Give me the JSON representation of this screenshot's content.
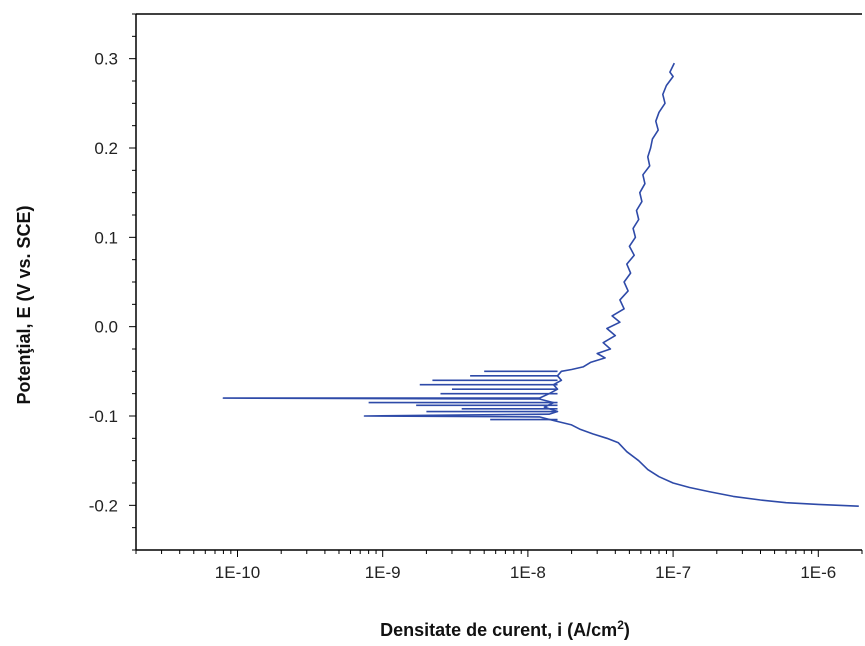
{
  "chart_data": {
    "type": "line",
    "title": "",
    "xlabel": "Densitate de curent, i (A/cm",
    "xlabel_sup": "2",
    "xlabel_end": ")",
    "ylabel": "Potenţial, E (V vs. SCE)",
    "xscale": "log",
    "xlim": [
      2e-11,
      2e-06
    ],
    "ylim": [
      -0.25,
      0.35
    ],
    "x_ticks": [
      {
        "value": 1e-10,
        "label": "1E-10"
      },
      {
        "value": 1e-09,
        "label": "1E-9"
      },
      {
        "value": 1e-08,
        "label": "1E-8"
      },
      {
        "value": 1e-07,
        "label": "1E-7"
      },
      {
        "value": 1e-06,
        "label": "1E-6"
      }
    ],
    "y_ticks": [
      {
        "value": 0.3,
        "label": "0.3"
      },
      {
        "value": 0.2,
        "label": "0.2"
      },
      {
        "value": 0.1,
        "label": "0.1"
      },
      {
        "value": 0.0,
        "label": "0.0"
      },
      {
        "value": -0.1,
        "label": "-0.1"
      },
      {
        "value": -0.2,
        "label": "-0.2"
      }
    ],
    "grid": false,
    "legend": "none",
    "line_color": "#2e4aa8",
    "series": [
      {
        "points": [
          [
            1.02e-07,
            0.295
          ],
          [
            9.5e-08,
            0.285
          ],
          [
            1e-07,
            0.28
          ],
          [
            9e-08,
            0.27
          ],
          [
            8.5e-08,
            0.26
          ],
          [
            8.8e-08,
            0.25
          ],
          [
            8e-08,
            0.24
          ],
          [
            7.6e-08,
            0.23
          ],
          [
            7.9e-08,
            0.22
          ],
          [
            7.2e-08,
            0.21
          ],
          [
            7e-08,
            0.2
          ],
          [
            6.7e-08,
            0.19
          ],
          [
            6.9e-08,
            0.18
          ],
          [
            6.2e-08,
            0.17
          ],
          [
            6.4e-08,
            0.16
          ],
          [
            5.9e-08,
            0.15
          ],
          [
            6.1e-08,
            0.14
          ],
          [
            5.6e-08,
            0.13
          ],
          [
            5.8e-08,
            0.12
          ],
          [
            5.3e-08,
            0.11
          ],
          [
            5.5e-08,
            0.1
          ],
          [
            5e-08,
            0.09
          ],
          [
            5.4e-08,
            0.08
          ],
          [
            4.8e-08,
            0.07
          ],
          [
            5.1e-08,
            0.06
          ],
          [
            4.6e-08,
            0.05
          ],
          [
            4.9e-08,
            0.04
          ],
          [
            4.3e-08,
            0.03
          ],
          [
            4.6e-08,
            0.02
          ],
          [
            3.8e-08,
            0.012
          ],
          [
            4.3e-08,
            0.005
          ],
          [
            3.5e-08,
            -0.002
          ],
          [
            4e-08,
            -0.01
          ],
          [
            3.3e-08,
            -0.018
          ],
          [
            3.7e-08,
            -0.025
          ],
          [
            3e-08,
            -0.03
          ],
          [
            3.4e-08,
            -0.035
          ],
          [
            2.7e-08,
            -0.04
          ],
          [
            2.4e-08,
            -0.045
          ],
          [
            2e-08,
            -0.048
          ],
          [
            1.7e-08,
            -0.05
          ],
          [
            1.6e-08,
            -0.055
          ],
          [
            1.7e-08,
            -0.06
          ],
          [
            1.5e-08,
            -0.065
          ],
          [
            1.6e-08,
            -0.07
          ],
          [
            1.4e-08,
            -0.075
          ],
          [
            1.2e-08,
            -0.08
          ],
          [
            8e-11,
            -0.08
          ],
          [
            1.2e-08,
            -0.081
          ],
          [
            1.5e-08,
            -0.085
          ],
          [
            1.3e-08,
            -0.09
          ],
          [
            1.6e-08,
            -0.095
          ],
          [
            1.4e-08,
            -0.098
          ],
          [
            7.5e-10,
            -0.1
          ],
          [
            1.2e-08,
            -0.101
          ],
          [
            1.5e-08,
            -0.105
          ],
          [
            2e-08,
            -0.11
          ],
          [
            2.3e-08,
            -0.115
          ],
          [
            2.8e-08,
            -0.12
          ],
          [
            3.5e-08,
            -0.125
          ],
          [
            4.2e-08,
            -0.13
          ],
          [
            4.8e-08,
            -0.14
          ],
          [
            5.8e-08,
            -0.15
          ],
          [
            6.7e-08,
            -0.16
          ],
          [
            8e-08,
            -0.168
          ],
          [
            1e-07,
            -0.175
          ],
          [
            1.3e-07,
            -0.18
          ],
          [
            1.8e-07,
            -0.185
          ],
          [
            2.6e-07,
            -0.19
          ],
          [
            4e-07,
            -0.194
          ],
          [
            6e-07,
            -0.197
          ],
          [
            1e-06,
            -0.199
          ],
          [
            1.9e-06,
            -0.201
          ]
        ]
      }
    ],
    "spikes": [
      {
        "y": -0.06,
        "x_min": 2.2e-09
      },
      {
        "y": -0.065,
        "x_min": 1.8e-09
      },
      {
        "y": -0.07,
        "x_min": 3e-09
      },
      {
        "y": -0.075,
        "x_min": 2.5e-09
      },
      {
        "y": -0.085,
        "x_min": 8e-10
      },
      {
        "y": -0.088,
        "x_min": 1.7e-09
      },
      {
        "y": -0.092,
        "x_min": 3.5e-09
      },
      {
        "y": -0.095,
        "x_min": 2e-09
      },
      {
        "y": -0.055,
        "x_min": 4e-09
      },
      {
        "y": -0.05,
        "x_min": 5e-09
      },
      {
        "y": -0.104,
        "x_min": 5.5e-09
      }
    ]
  }
}
